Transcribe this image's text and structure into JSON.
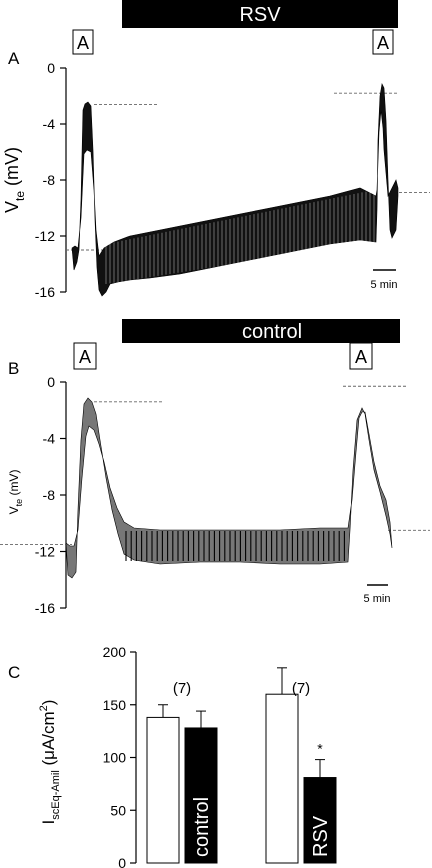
{
  "panels": {
    "A": {
      "letter": "A",
      "bar_label": "RSV",
      "marker_label": "A",
      "ylabel_main": "V",
      "ylabel_sub": "te",
      "ylabel_unit": " (mV)",
      "scale_label": "5 min",
      "ymin": -16,
      "ymax": 0,
      "yticks": [
        "0",
        "-4",
        "-8",
        "-12",
        "-16"
      ],
      "dashed_levels": [
        -2.6,
        -13.0,
        -1.8,
        -8.9
      ]
    },
    "B": {
      "letter": "B",
      "bar_label": "control",
      "marker_label": "A",
      "ylabel_main": "V",
      "ylabel_sub": "te",
      "ylabel_unit": " (mV)",
      "scale_label": "5 min",
      "ymin": -16,
      "ymax": 0,
      "yticks": [
        "0",
        "-4",
        "-8",
        "-12",
        "-16"
      ],
      "dashed_levels": [
        -1.4,
        -11.5,
        -0.3,
        -10.5
      ]
    }
  },
  "chart_data": {
    "type": "bar",
    "letter": "C",
    "categories": [
      "control",
      "RSV"
    ],
    "series": [
      {
        "values": [
          138,
          160
        ],
        "errors": [
          12,
          25
        ],
        "color": "#ffffff"
      },
      {
        "values": [
          128,
          81
        ],
        "errors": [
          16,
          17
        ],
        "color": "#000000"
      }
    ],
    "bar_labels": [
      "control",
      "RSV"
    ],
    "n_labels": [
      "(7)",
      "(7)"
    ],
    "significance": "*",
    "ylabel_main": "I",
    "ylabel_sub": "scEq-Amil",
    "ylabel_unit_pre": " (μA/cm",
    "ylabel_sup": "2",
    "ylabel_unit_post": ")",
    "ylim": [
      0,
      200
    ],
    "yticks": [
      "0",
      "50",
      "100",
      "150",
      "200"
    ]
  }
}
